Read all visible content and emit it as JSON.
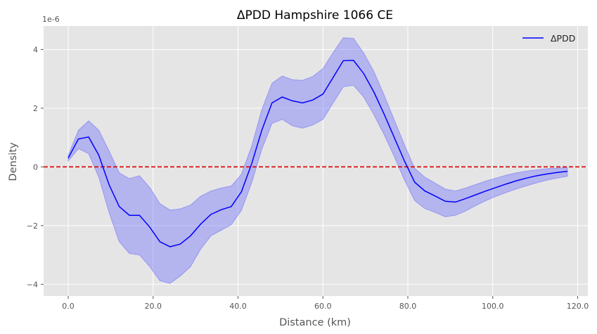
{
  "chart_data": {
    "type": "line",
    "title": "ΔPDD Hampshire 1066 CE",
    "xlabel": "Distance (km)",
    "ylabel": "Density",
    "y_offset_label": "1e-6",
    "y_multiplier": 1e-06,
    "xlim": [
      -5.8,
      122.4
    ],
    "ylim": [
      -4.4,
      4.8
    ],
    "x_ticks": [
      0,
      20,
      40,
      60,
      80,
      100,
      120
    ],
    "x_tick_labels": [
      "0.0",
      "20.0",
      "40.0",
      "60.0",
      "80.0",
      "100.0",
      "120.0"
    ],
    "y_ticks": [
      -4,
      -2,
      0,
      2,
      4
    ],
    "y_tick_labels": [
      "−4",
      "−2",
      "0",
      "2",
      "4"
    ],
    "grid": true,
    "legend_position": "top-right",
    "reference_line": {
      "y": 0,
      "color": "#dd0000",
      "style": "dashed"
    },
    "series": [
      {
        "name": "ΔPDD",
        "color": "#0000ff",
        "band_color": "#5a5aff",
        "x": [
          0,
          2.4,
          4.8,
          7.2,
          9.6,
          12,
          14.4,
          16.8,
          19.2,
          21.6,
          24,
          26.4,
          28.8,
          31.2,
          33.6,
          36,
          38.4,
          40.8,
          43.2,
          45.6,
          48,
          50.4,
          52.8,
          55.2,
          57.6,
          60,
          62.4,
          64.8,
          67.2,
          69.6,
          72,
          74.4,
          76.8,
          79.2,
          81.6,
          84,
          86.4,
          88.8,
          91.2,
          93.6,
          96,
          98.4,
          100.8,
          103.2,
          105.6,
          108,
          110.4,
          112.8,
          115.2,
          117.6
        ],
        "y": [
          0.3,
          0.95,
          1.02,
          0.4,
          -0.6,
          -1.35,
          -1.65,
          -1.65,
          -2.05,
          -2.55,
          -2.72,
          -2.63,
          -2.35,
          -1.95,
          -1.62,
          -1.46,
          -1.35,
          -0.85,
          0.1,
          1.25,
          2.18,
          2.38,
          2.25,
          2.18,
          2.28,
          2.48,
          3.05,
          3.62,
          3.63,
          3.18,
          2.55,
          1.8,
          1.0,
          0.2,
          -0.52,
          -0.82,
          -0.99,
          -1.17,
          -1.2,
          -1.08,
          -0.95,
          -0.82,
          -0.7,
          -0.58,
          -0.47,
          -0.38,
          -0.3,
          -0.24,
          -0.19,
          -0.15
        ],
        "upper": [
          0.4,
          1.25,
          1.57,
          1.25,
          0.55,
          -0.2,
          -0.4,
          -0.3,
          -0.7,
          -1.25,
          -1.47,
          -1.43,
          -1.3,
          -1.0,
          -0.82,
          -0.72,
          -0.65,
          -0.25,
          0.7,
          1.95,
          2.85,
          3.1,
          2.97,
          2.95,
          3.08,
          3.35,
          3.9,
          4.4,
          4.38,
          3.88,
          3.25,
          2.45,
          1.6,
          0.75,
          -0.05,
          -0.35,
          -0.55,
          -0.75,
          -0.82,
          -0.72,
          -0.6,
          -0.48,
          -0.38,
          -0.28,
          -0.2,
          -0.14,
          -0.1,
          -0.06,
          -0.04,
          -0.02
        ],
        "lower": [
          0.2,
          0.62,
          0.45,
          -0.35,
          -1.55,
          -2.55,
          -2.95,
          -3.0,
          -3.4,
          -3.88,
          -3.97,
          -3.72,
          -3.4,
          -2.8,
          -2.35,
          -2.16,
          -1.97,
          -1.48,
          -0.55,
          0.6,
          1.48,
          1.62,
          1.4,
          1.32,
          1.43,
          1.62,
          2.18,
          2.73,
          2.78,
          2.38,
          1.78,
          1.1,
          0.35,
          -0.45,
          -1.15,
          -1.42,
          -1.55,
          -1.7,
          -1.65,
          -1.5,
          -1.32,
          -1.15,
          -1.0,
          -0.87,
          -0.75,
          -0.64,
          -0.54,
          -0.45,
          -0.38,
          -0.32
        ]
      }
    ]
  }
}
